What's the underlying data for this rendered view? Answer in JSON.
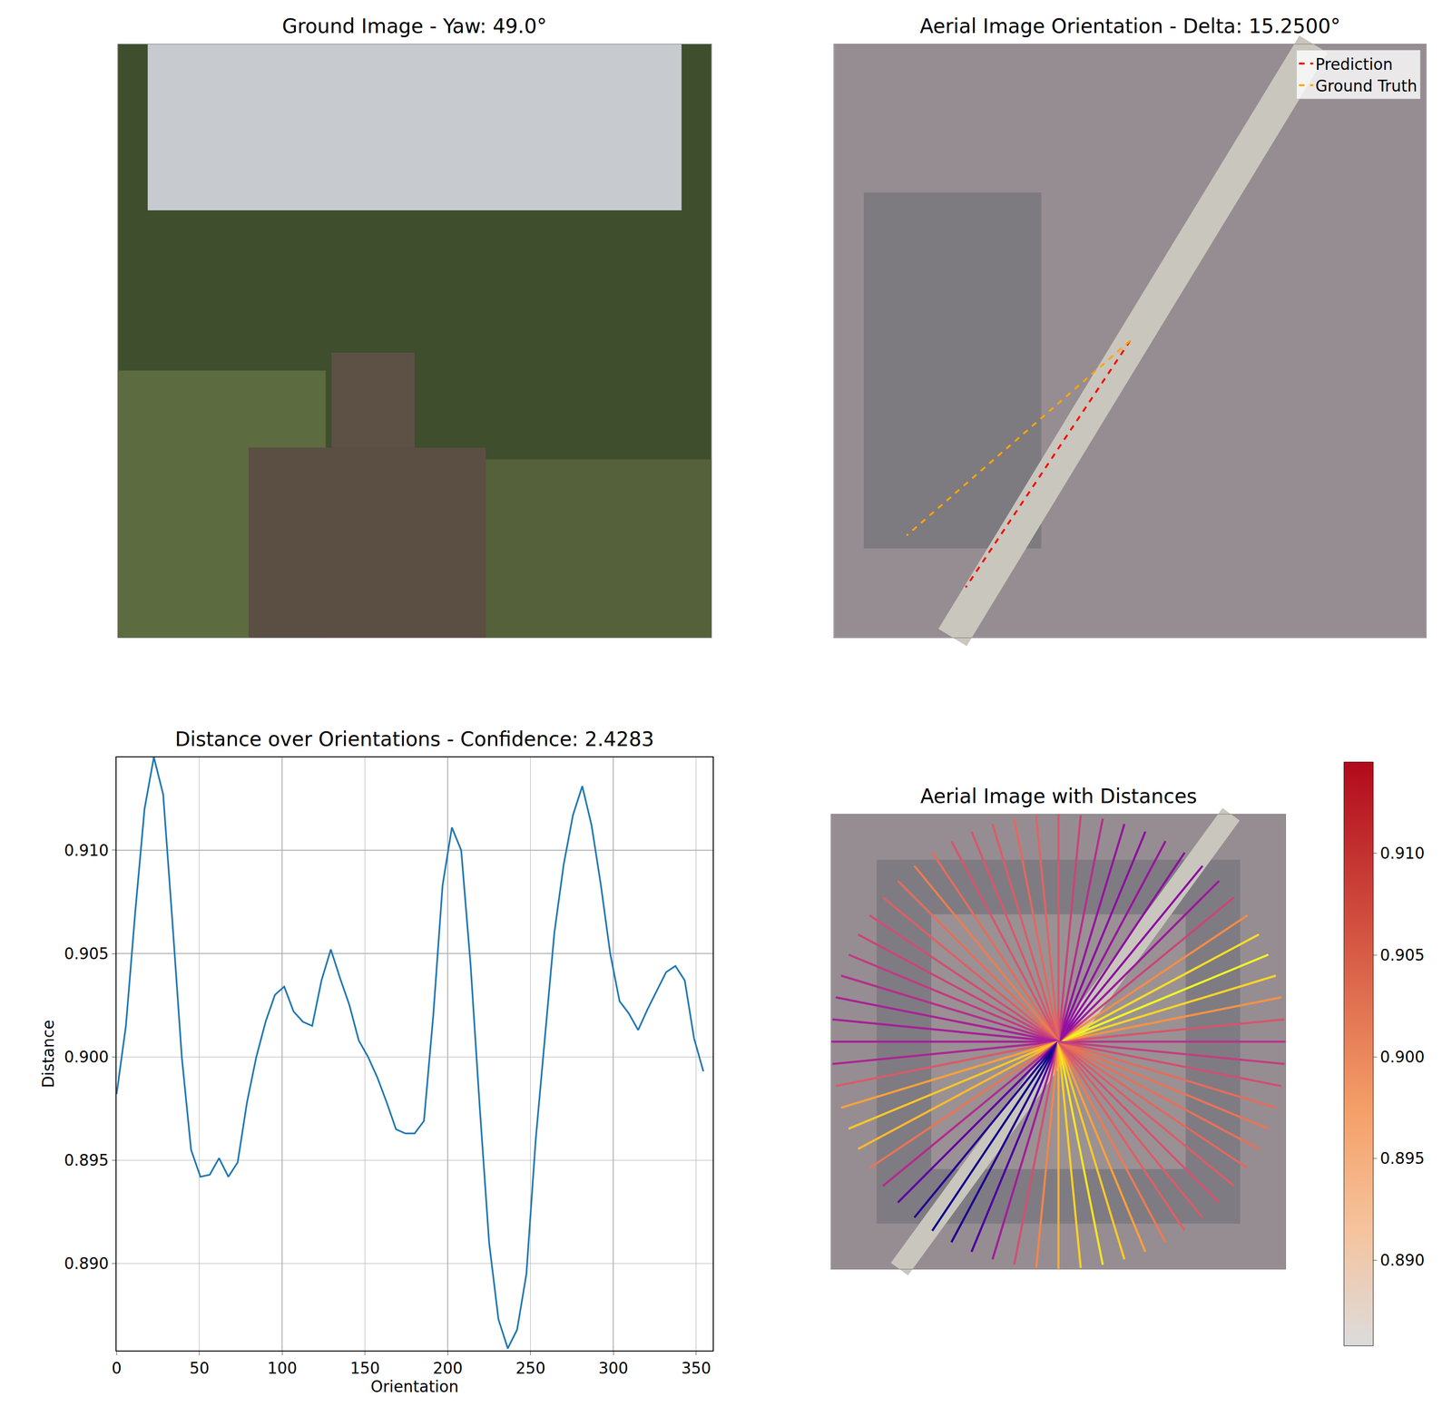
{
  "chart_data": [
    {
      "type": "image",
      "title": "Ground Image - Yaw: 49.0°",
      "tick_labels": false
    },
    {
      "type": "orientation",
      "title": "Aerial Image Orientation - Delta: 15.2500°",
      "tick_labels": false,
      "xlim": [
        -1,
        1
      ],
      "ylim": [
        -1,
        1
      ],
      "radius": 1,
      "legend": "upper right",
      "series": [
        {
          "name": "Prediction",
          "color": "red",
          "angle": 236.25,
          "line_style": "dashed"
        },
        {
          "name": "Ground Truth",
          "color": "orange",
          "angle": 221.0,
          "line_style": "dashed"
        }
      ]
    },
    {
      "type": "line",
      "title": "Distance over Orientations - Confidence: 2.4283",
      "x_label": "Orientation",
      "y_label": "Distance",
      "color": "#1f77b4",
      "grid": true,
      "x": [
        0,
        5.625,
        11.25,
        16.875,
        22.5,
        28.125,
        33.75,
        39.375,
        45,
        50.625,
        56.25,
        61.875,
        67.5,
        73.125,
        78.75,
        84.375,
        90,
        95.625,
        101.25,
        106.875,
        112.5,
        118.125,
        123.75,
        129.375,
        135,
        140.625,
        146.25,
        151.875,
        157.5,
        163.125,
        168.75,
        174.375,
        180,
        185.625,
        191.25,
        196.875,
        202.5,
        208.125,
        213.75,
        219.375,
        225,
        230.625,
        236.25,
        241.875,
        247.5,
        253.125,
        258.75,
        264.375,
        270,
        275.625,
        281.25,
        286.875,
        292.5,
        298.125,
        303.75,
        309.375,
        315,
        320.625,
        326.25,
        331.875,
        337.5,
        343.125,
        348.75,
        354.375
      ],
      "values": [
        0.8982,
        0.9015,
        0.907,
        0.912,
        0.9145,
        0.9127,
        0.9065,
        0.9,
        0.8955,
        0.8942,
        0.8943,
        0.8951,
        0.8942,
        0.8949,
        0.8978,
        0.9,
        0.9017,
        0.903,
        0.9034,
        0.9022,
        0.9017,
        0.9015,
        0.9037,
        0.9052,
        0.9038,
        0.9025,
        0.9008,
        0.9,
        0.899,
        0.8978,
        0.8965,
        0.8963,
        0.8963,
        0.8969,
        0.902,
        0.9083,
        0.9111,
        0.91,
        0.9045,
        0.8975,
        0.891,
        0.8873,
        0.8859,
        0.8868,
        0.8895,
        0.896,
        0.901,
        0.906,
        0.9093,
        0.9117,
        0.9131,
        0.9112,
        0.9083,
        0.905,
        0.9027,
        0.9021,
        0.9013,
        0.9023,
        0.9032,
        0.9041,
        0.9044,
        0.9037,
        0.9009,
        0.8993
      ],
      "xlim": [
        0,
        360
      ],
      "ylim": [
        0.8858,
        0.9145
      ],
      "xticks": [
        0,
        50,
        100,
        150,
        200,
        250,
        300,
        350
      ],
      "yticks": [
        {
          "value": 0.89,
          "label": "0.890"
        },
        0.895,
        {
          "value": 0.9,
          "label": "0.900"
        },
        0.905,
        {
          "value": 0.91,
          "label": "0.910"
        }
      ]
    },
    {
      "type": "radial",
      "title": "Aerial Image with Distances",
      "tick_labels": false,
      "xlim": [
        -1,
        1
      ],
      "ylim": [
        -1,
        1
      ],
      "radius": 1,
      "angles": [
        0,
        5.625,
        11.25,
        16.875,
        22.5,
        28.125,
        33.75,
        39.375,
        45,
        50.625,
        56.25,
        61.875,
        67.5,
        73.125,
        78.75,
        84.375,
        90,
        95.625,
        101.25,
        106.875,
        112.5,
        118.125,
        123.75,
        129.375,
        135,
        140.625,
        146.25,
        151.875,
        157.5,
        163.125,
        168.75,
        174.375,
        180,
        185.625,
        191.25,
        196.875,
        202.5,
        208.125,
        213.75,
        219.375,
        225,
        230.625,
        236.25,
        241.875,
        247.5,
        253.125,
        258.75,
        264.375,
        270,
        275.625,
        281.25,
        286.875,
        292.5,
        298.125,
        303.75,
        309.375,
        315,
        320.625,
        326.25,
        331.875,
        337.5,
        343.125,
        348.75,
        354.375
      ],
      "values": [
        0.8982,
        0.9015,
        0.907,
        0.912,
        0.9145,
        0.9127,
        0.9065,
        0.9,
        0.8955,
        0.8942,
        0.8943,
        0.8951,
        0.8942,
        0.8949,
        0.8978,
        0.9,
        0.9017,
        0.903,
        0.9034,
        0.9022,
        0.9017,
        0.9015,
        0.9037,
        0.9052,
        0.9038,
        0.9025,
        0.9008,
        0.9,
        0.899,
        0.8978,
        0.8965,
        0.8963,
        0.8963,
        0.8969,
        0.902,
        0.9083,
        0.9111,
        0.91,
        0.9045,
        0.8975,
        0.891,
        0.8873,
        0.8859,
        0.8868,
        0.8895,
        0.896,
        0.901,
        0.906,
        0.9093,
        0.9117,
        0.9131,
        0.9112,
        0.9083,
        0.905,
        0.9027,
        0.9021,
        0.9013,
        0.9023,
        0.9032,
        0.9041,
        0.9044,
        0.9037,
        0.9009,
        0.8993
      ],
      "colorbar": {
        "range": [
          0.8858,
          0.9145
        ],
        "ticks": [
          {
            "value": 0.89,
            "label": "0.890"
          },
          0.895,
          {
            "value": 0.9,
            "label": "0.900"
          },
          0.905,
          {
            "value": 0.91,
            "label": "0.910"
          }
        ]
      }
    }
  ]
}
